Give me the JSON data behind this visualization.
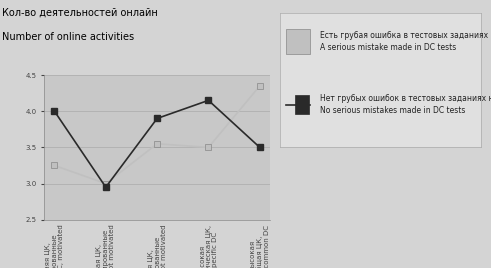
{
  "categories": [
    "Средняя ЦК,\nмотивированные\nAverage DC, motivated",
    "Низкая ЦК,\nнемотивированные\nLow DC, not motivated",
    "Средняя ЦК,\nнемотивированные\nAverage DC, not motivated",
    "Высокая\nспецифическая ЦК,\nHigh specific DC",
    "Высокая\nобщая ЦК,\nHigh common DC"
  ],
  "series_mistake": [
    3.25,
    3.0,
    3.55,
    3.5,
    4.35
  ],
  "series_no_mistake": [
    4.0,
    2.95,
    3.9,
    4.15,
    3.5
  ],
  "color_mistake": "#c0c0c0",
  "color_no_mistake": "#2a2a2a",
  "marker_size": 5,
  "ylim": [
    2.5,
    4.5
  ],
  "yticks": [
    2.5,
    3.0,
    3.5,
    4.0,
    4.5
  ],
  "ylabel_ru": "Кол-во деятельностей онлайн",
  "ylabel_en": "Number of online activities",
  "legend_mistake_ru": "Есть грубая ошибка в тестовых заданиях на ЦК",
  "legend_mistake_en": "A serious mistake made in DC tests",
  "legend_no_mistake_ru": "Нет грубых ошибок в тестовых заданиях на ЦК",
  "legend_no_mistake_en": "No serious mistakes made in DC tests",
  "bg_color": "#d4d4d4",
  "plot_bg_color": "#c8c8c8",
  "title_fontsize": 7.0,
  "tick_fontsize": 5.0,
  "legend_fontsize": 5.5,
  "grid_color": "#b0b0b0"
}
